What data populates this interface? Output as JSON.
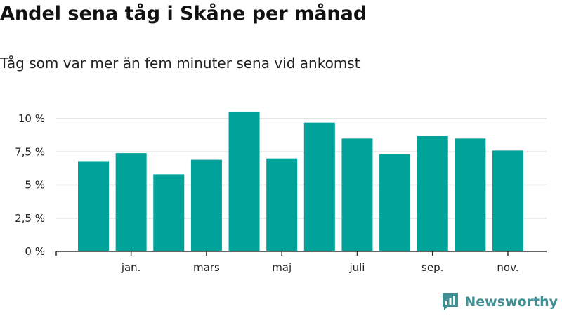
{
  "title": "Andel sena tåg i Skåne per månad",
  "subtitle": "Tåg som var mer än fem minuter sena vid ankomst",
  "brand": {
    "name": "Newsworthy",
    "icon": "newsworthy-bar-chart-icon"
  },
  "colors": {
    "bar": "#00a29a",
    "grid": "#dddddd",
    "axis": "#333333",
    "brand": "#3f8f94"
  },
  "chart_data": {
    "type": "bar",
    "x": [
      "2017-12",
      "2018-01",
      "2018-02",
      "2018-03",
      "2018-04",
      "2018-05",
      "2018-06",
      "2018-07",
      "2018-08",
      "2018-09",
      "2018-10",
      "2018-11"
    ],
    "values": [
      6.8,
      7.4,
      5.8,
      6.9,
      10.5,
      7.0,
      9.7,
      8.5,
      7.3,
      8.7,
      8.5,
      7.6
    ],
    "ylim": [
      0,
      10
    ],
    "yticks": [
      0,
      2.5,
      5,
      7.5,
      10
    ],
    "ytick_labels": [
      "0 %",
      "2,5 %",
      "5 %",
      "7,5 %",
      "10 %"
    ],
    "xtick_labels": [
      "jan.",
      "mars",
      "maj",
      "juli",
      "sep.",
      "nov."
    ],
    "xlabel": "",
    "ylabel": "",
    "grid": true
  }
}
